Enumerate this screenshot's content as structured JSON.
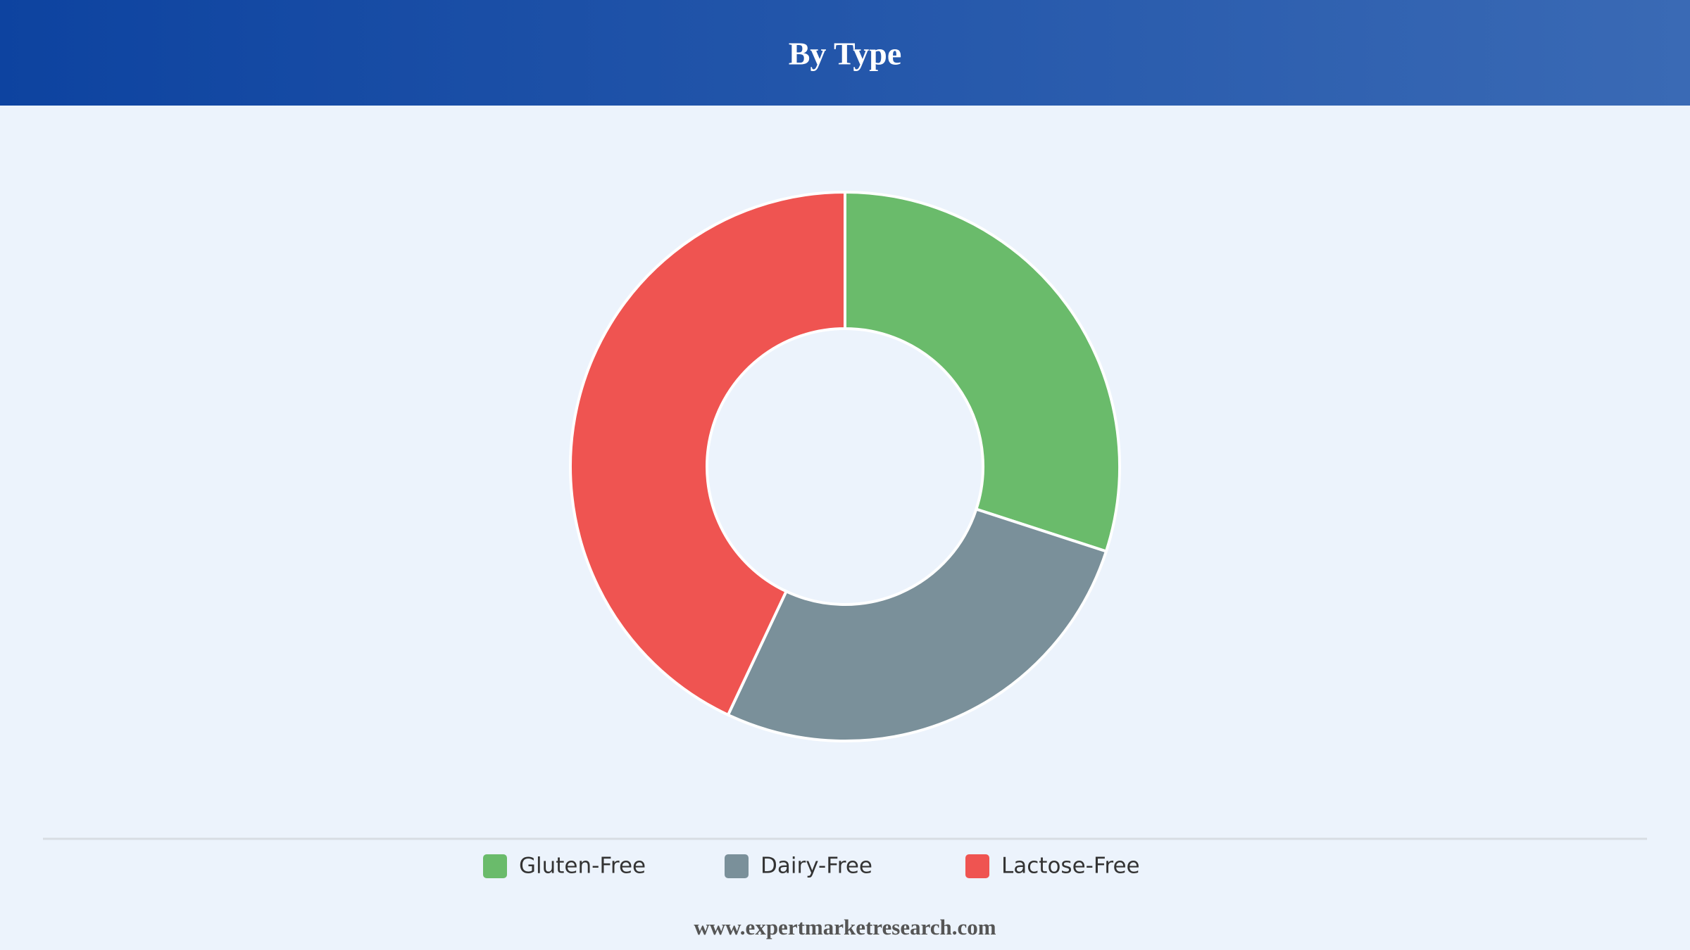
{
  "chart_data": {
    "type": "donut",
    "title": "By Type",
    "categories": [
      "Gluten-Free",
      "Dairy-Free",
      "Lactose-Free"
    ],
    "values": [
      30,
      27,
      43
    ],
    "colors": [
      "#6abb6b",
      "#7a909a",
      "#ef5451"
    ],
    "source": "www.expertmarketresearch.com"
  }
}
